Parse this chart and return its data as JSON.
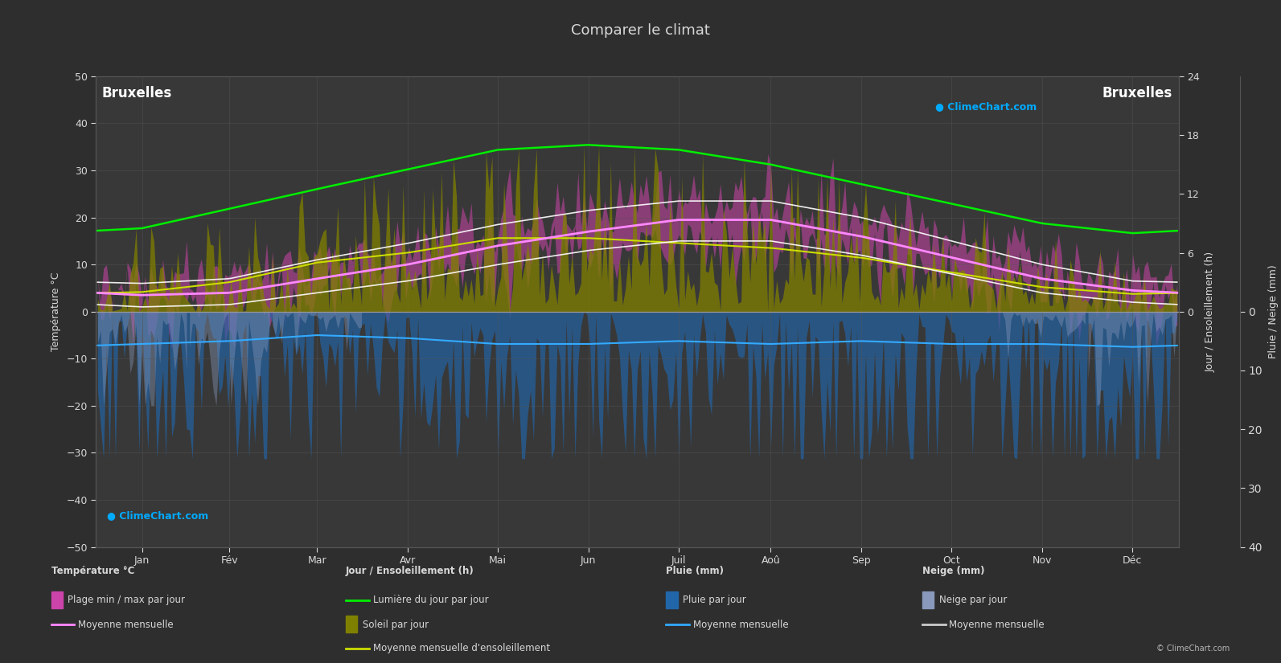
{
  "title": "Comparer le climat",
  "city_left": "Bruxelles",
  "city_right": "Bruxelles",
  "bg_color": "#2e2e2e",
  "plot_bg_color": "#383838",
  "text_color": "#d8d8d8",
  "months": [
    "Jan",
    "Fév",
    "Mar",
    "Avr",
    "Mai",
    "Jun",
    "Juil",
    "Aoû",
    "Sep",
    "Oct",
    "Nov",
    "Déc"
  ],
  "days_per_month": [
    31,
    28,
    31,
    30,
    31,
    30,
    31,
    31,
    30,
    31,
    30,
    31
  ],
  "temp_ylim": [
    -50,
    50
  ],
  "temp_avg": [
    3.5,
    4.0,
    7.0,
    10.0,
    14.0,
    17.0,
    19.5,
    19.5,
    16.0,
    11.5,
    7.0,
    4.5
  ],
  "temp_max_avg": [
    6.0,
    7.0,
    11.0,
    14.5,
    18.5,
    21.5,
    23.5,
    23.5,
    20.0,
    15.0,
    10.0,
    6.5
  ],
  "temp_min_avg": [
    1.0,
    1.5,
    4.0,
    6.5,
    10.0,
    13.0,
    15.0,
    15.0,
    12.0,
    8.0,
    4.0,
    2.0
  ],
  "daylight_avg": [
    8.5,
    10.5,
    12.5,
    14.5,
    16.5,
    17.0,
    16.5,
    15.0,
    13.0,
    11.0,
    9.0,
    8.0
  ],
  "sunshine_avg": [
    2.0,
    3.0,
    5.0,
    6.0,
    7.5,
    7.5,
    7.0,
    6.5,
    5.5,
    4.0,
    2.5,
    1.8
  ],
  "rain_avg_mm": [
    5.5,
    5.0,
    4.0,
    4.5,
    5.5,
    5.5,
    5.0,
    5.5,
    5.0,
    5.5,
    5.5,
    6.0
  ],
  "snow_avg_mm": [
    2.0,
    1.5,
    0.5,
    0.0,
    0.0,
    0.0,
    0.0,
    0.0,
    0.0,
    0.0,
    0.5,
    1.5
  ],
  "grid_color": "#555555",
  "sun_right_ticks": [
    0,
    6,
    12,
    18,
    24
  ],
  "sun_right_labels": [
    "0",
    "6",
    "12",
    "18",
    "24"
  ],
  "rain_right_ticks": [
    0,
    10,
    20,
    30,
    40
  ],
  "rain_right_labels": [
    "0",
    "10",
    "20",
    "30",
    "40"
  ]
}
